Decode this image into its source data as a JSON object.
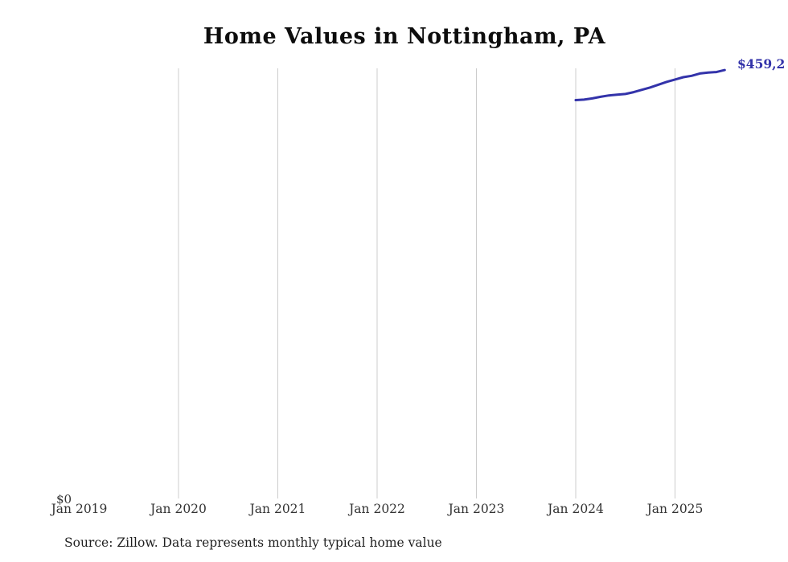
{
  "title": "Home Values in Nottingham, PA",
  "source_note": "Source: Zillow. Data represents monthly typical home value",
  "y_zero_label": "$0",
  "end_label": "$459,2",
  "colors": {
    "line": "#3333aa",
    "grid": "#cccccc",
    "end_label": "#3333aa",
    "title": "#0d0d0d",
    "axis_text": "#333333"
  },
  "chart_data": {
    "type": "line",
    "title": "Home Values in Nottingham, PA",
    "xlabel": "",
    "ylabel": "",
    "ylim": [
      0,
      461000
    ],
    "grid": "vertical-only",
    "legend": "none",
    "x_tick_labels": [
      "Jan 2019",
      "Jan 2020",
      "Jan 2021",
      "Jan 2022",
      "Jan 2023",
      "Jan 2024",
      "Jan 2025"
    ],
    "gridline_ticks": [
      "Jan 2020",
      "Jan 2021",
      "Jan 2022",
      "Jan 2023",
      "Jan 2024",
      "Jan 2025"
    ],
    "series": [
      {
        "name": "Monthly typical home value",
        "x": [
          "2024-01",
          "2024-02",
          "2024-03",
          "2024-04",
          "2024-05",
          "2024-06",
          "2024-07",
          "2024-08",
          "2024-09",
          "2024-10",
          "2024-11",
          "2024-12",
          "2025-01",
          "2025-02",
          "2025-03",
          "2025-04",
          "2025-05",
          "2025-06",
          "2025-07"
        ],
        "values": [
          427000,
          427500,
          428800,
          430500,
          432000,
          432800,
          433500,
          435500,
          438000,
          440500,
          443500,
          446500,
          449000,
          451500,
          453000,
          455500,
          456500,
          457000,
          459200
        ]
      }
    ],
    "end_value_label": "$459,2",
    "y_zero_label": "$0"
  }
}
